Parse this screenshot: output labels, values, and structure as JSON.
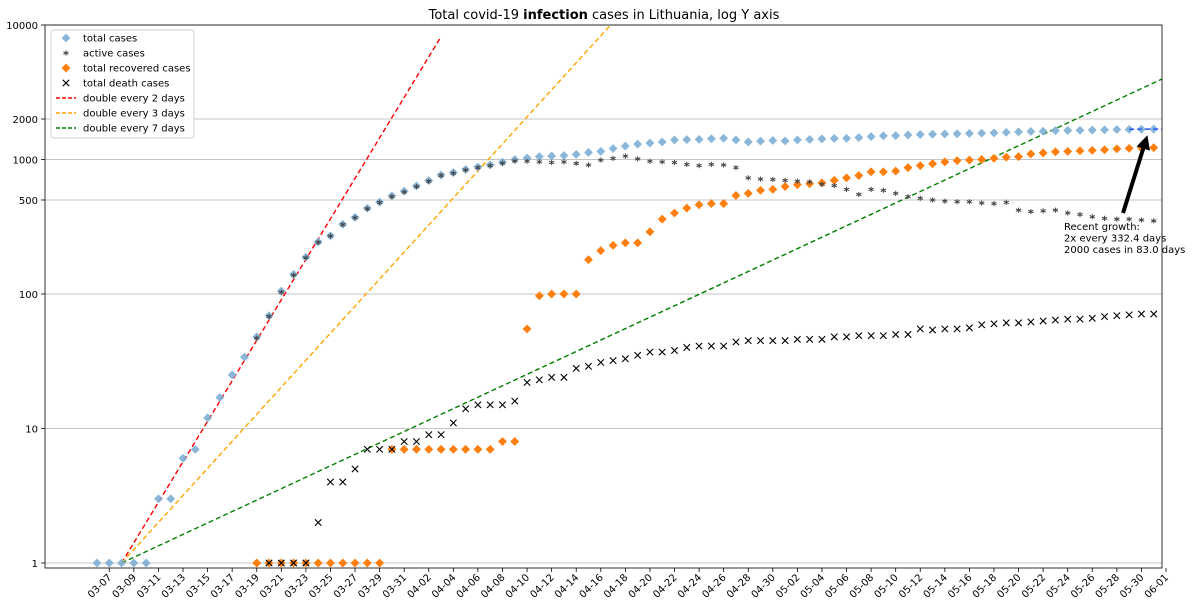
{
  "chart_data": {
    "type": "scatter",
    "title": {
      "prefix": "Total covid-19 ",
      "bold": "infection",
      "suffix": " cases in Lithuania, log Y axis"
    },
    "xlabel": "",
    "ylabel": "",
    "yscale": "log",
    "ylim": [
      1,
      10000
    ],
    "x_ticks": [
      "03-07",
      "03-09",
      "03-11",
      "03-13",
      "03-15",
      "03-17",
      "03-19",
      "03-21",
      "03-23",
      "03-25",
      "03-27",
      "03-29",
      "03-31",
      "04-02",
      "04-04",
      "04-06",
      "04-08",
      "04-10",
      "04-12",
      "04-14",
      "04-16",
      "04-18",
      "04-20",
      "04-22",
      "04-24",
      "04-26",
      "04-28",
      "04-30",
      "05-02",
      "05-04",
      "05-06",
      "05-08",
      "05-10",
      "05-12",
      "05-14",
      "05-16",
      "05-18",
      "05-20",
      "05-22",
      "05-24",
      "05-26",
      "05-28",
      "05-30",
      "06-01"
    ],
    "y_ticks": [
      1,
      10,
      100,
      500,
      1000,
      2000,
      10000
    ],
    "y_tick_labels": [
      "1",
      "10",
      "100",
      "500",
      "1000",
      "2000",
      "10000"
    ],
    "grid": {
      "y": true,
      "x": false
    },
    "legend_position": "top-left",
    "date_range": [
      "03-06",
      "06-01"
    ],
    "series": [
      {
        "name": "total cases",
        "marker": "diamond",
        "color": "#7eb0d5",
        "dates": [
          "03-06",
          "03-07",
          "03-08",
          "03-09",
          "03-10",
          "03-11",
          "03-12",
          "03-13",
          "03-14",
          "03-15",
          "03-16",
          "03-17",
          "03-18",
          "03-19",
          "03-20",
          "03-21",
          "03-22",
          "03-23",
          "03-24",
          "03-25",
          "03-26",
          "03-27",
          "03-28",
          "03-29",
          "03-30",
          "03-31",
          "04-01",
          "04-02",
          "04-03",
          "04-04",
          "04-05",
          "04-06",
          "04-07",
          "04-08",
          "04-09",
          "04-10",
          "04-11",
          "04-12",
          "04-13",
          "04-14",
          "04-15",
          "04-16",
          "04-17",
          "04-18",
          "04-19",
          "04-20",
          "04-21",
          "04-22",
          "04-23",
          "04-24",
          "04-25",
          "04-26",
          "04-27",
          "04-28",
          "04-29",
          "04-30",
          "05-01",
          "05-02",
          "05-03",
          "05-04",
          "05-05",
          "05-06",
          "05-07",
          "05-08",
          "05-09",
          "05-10",
          "05-11",
          "05-12",
          "05-13",
          "05-14",
          "05-15",
          "05-16",
          "05-17",
          "05-18",
          "05-19",
          "05-20",
          "05-21",
          "05-22",
          "05-23",
          "05-24",
          "05-25",
          "05-26",
          "05-27",
          "05-28",
          "05-29",
          "05-30",
          "05-31",
          "06-01"
        ],
        "values": [
          1,
          1,
          1,
          1,
          1,
          3,
          3,
          6,
          7,
          12,
          17,
          25,
          34,
          48,
          69,
          105,
          140,
          188,
          244,
          271,
          330,
          371,
          434,
          482,
          537,
          581,
          636,
          696,
          767,
          799,
          843,
          880,
          912,
          955,
          999,
          1026,
          1050,
          1062,
          1070,
          1091,
          1128,
          1149,
          1206,
          1258,
          1301,
          1326,
          1349,
          1399,
          1405,
          1410,
          1426,
          1438,
          1398,
          1350,
          1370,
          1385,
          1375,
          1398,
          1410,
          1422,
          1433,
          1436,
          1456,
          1480,
          1499,
          1504,
          1521,
          1534,
          1541,
          1547,
          1553,
          1562,
          1570,
          1577,
          1593,
          1605,
          1616,
          1623,
          1639,
          1642,
          1647,
          1656,
          1662,
          1670,
          1675,
          1678,
          1682,
          1687
        ]
      },
      {
        "name": "active cases",
        "marker": "star",
        "color": "#444444",
        "dates": [
          "03-19",
          "03-20",
          "03-21",
          "03-22",
          "03-23",
          "03-24",
          "03-25",
          "03-26",
          "03-27",
          "03-28",
          "03-29",
          "03-30",
          "03-31",
          "04-01",
          "04-02",
          "04-03",
          "04-04",
          "04-05",
          "04-06",
          "04-07",
          "04-08",
          "04-09",
          "04-10",
          "04-11",
          "04-12",
          "04-13",
          "04-14",
          "04-15",
          "04-16",
          "04-17",
          "04-18",
          "04-19",
          "04-20",
          "04-21",
          "04-22",
          "04-23",
          "04-24",
          "04-25",
          "04-26",
          "04-27",
          "04-28",
          "04-29",
          "04-30",
          "05-01",
          "05-02",
          "05-03",
          "05-04",
          "05-05",
          "05-06",
          "05-07",
          "05-08",
          "05-09",
          "05-10",
          "05-11",
          "05-12",
          "05-13",
          "05-14",
          "05-15",
          "05-16",
          "05-17",
          "05-18",
          "05-19",
          "05-20",
          "05-21",
          "05-22",
          "05-23",
          "05-24",
          "05-25",
          "05-26",
          "05-27",
          "05-28",
          "05-29",
          "05-30",
          "05-31",
          "06-01"
        ],
        "values": [
          47,
          68,
          103,
          138,
          186,
          242,
          270,
          328,
          369,
          430,
          479,
          530,
          573,
          629,
          689,
          760,
          790,
          835,
          870,
          900,
          940,
          975,
          970,
          960,
          950,
          960,
          935,
          910,
          990,
          1020,
          1060,
          1010,
          970,
          960,
          950,
          920,
          900,
          920,
          910,
          870,
          730,
          715,
          710,
          700,
          690,
          680,
          655,
          640,
          600,
          550,
          600,
          590,
          560,
          530,
          515,
          500,
          490,
          485,
          485,
          475,
          470,
          480,
          420,
          410,
          415,
          420,
          400,
          390,
          375,
          365,
          360,
          360,
          355,
          350,
          340
        ]
      },
      {
        "name": "total recovered cases",
        "marker": "diamond",
        "color": "#ff7f0e",
        "dates": [
          "03-19",
          "03-20",
          "03-21",
          "03-22",
          "03-23",
          "03-24",
          "03-25",
          "03-26",
          "03-27",
          "03-28",
          "03-29",
          "03-30",
          "03-31",
          "04-01",
          "04-02",
          "04-03",
          "04-04",
          "04-05",
          "04-06",
          "04-07",
          "04-08",
          "04-09",
          "04-10",
          "04-11",
          "04-12",
          "04-13",
          "04-14",
          "04-15",
          "04-16",
          "04-17",
          "04-18",
          "04-19",
          "04-20",
          "04-21",
          "04-22",
          "04-23",
          "04-24",
          "04-25",
          "04-26",
          "04-27",
          "04-28",
          "04-29",
          "04-30",
          "05-01",
          "05-02",
          "05-03",
          "05-04",
          "05-05",
          "05-06",
          "05-07",
          "05-08",
          "05-09",
          "05-10",
          "05-11",
          "05-12",
          "05-13",
          "05-14",
          "05-15",
          "05-16",
          "05-17",
          "05-18",
          "05-19",
          "05-20",
          "05-21",
          "05-22",
          "05-23",
          "05-24",
          "05-25",
          "05-26",
          "05-27",
          "05-28",
          "05-29",
          "05-30",
          "05-31",
          "06-01"
        ],
        "values": [
          1,
          1,
          1,
          1,
          1,
          1,
          1,
          1,
          1,
          1,
          1,
          7,
          7,
          7,
          7,
          7,
          7,
          7,
          7,
          7,
          8,
          8,
          55,
          97,
          100,
          100,
          100,
          180,
          210,
          230,
          240,
          240,
          290,
          360,
          400,
          435,
          460,
          470,
          470,
          540,
          560,
          590,
          600,
          630,
          650,
          660,
          670,
          700,
          730,
          760,
          810,
          810,
          820,
          870,
          900,
          930,
          960,
          980,
          990,
          1000,
          1020,
          1040,
          1050,
          1100,
          1120,
          1140,
          1150,
          1160,
          1170,
          1180,
          1200,
          1210,
          1220,
          1225,
          1230
        ]
      },
      {
        "name": "total death cases",
        "marker": "x",
        "color": "#000000",
        "dates": [
          "03-20",
          "03-21",
          "03-22",
          "03-23",
          "03-24",
          "03-25",
          "03-26",
          "03-27",
          "03-28",
          "03-29",
          "03-30",
          "03-31",
          "04-01",
          "04-02",
          "04-03",
          "04-04",
          "04-05",
          "04-06",
          "04-07",
          "04-08",
          "04-09",
          "04-10",
          "04-11",
          "04-12",
          "04-13",
          "04-14",
          "04-15",
          "04-16",
          "04-17",
          "04-18",
          "04-19",
          "04-20",
          "04-21",
          "04-22",
          "04-23",
          "04-24",
          "04-25",
          "04-26",
          "04-27",
          "04-28",
          "04-29",
          "04-30",
          "05-01",
          "05-02",
          "05-03",
          "05-04",
          "05-05",
          "05-06",
          "05-07",
          "05-08",
          "05-09",
          "05-10",
          "05-11",
          "05-12",
          "05-13",
          "05-14",
          "05-15",
          "05-16",
          "05-17",
          "05-18",
          "05-19",
          "05-20",
          "05-21",
          "05-22",
          "05-23",
          "05-24",
          "05-25",
          "05-26",
          "05-27",
          "05-28",
          "05-29",
          "05-30",
          "05-31",
          "06-01"
        ],
        "values": [
          1,
          1,
          1,
          1,
          2,
          4,
          4,
          5,
          7,
          7,
          7,
          8,
          8,
          9,
          9,
          11,
          14,
          15,
          15,
          15,
          16,
          22,
          23,
          24,
          24,
          28,
          29,
          31,
          32,
          33,
          35,
          37,
          37,
          38,
          40,
          41,
          41,
          41,
          44,
          45,
          45,
          45,
          45,
          46,
          46,
          46,
          48,
          48,
          49,
          49,
          49,
          50,
          50,
          55,
          54,
          55,
          55,
          56,
          59,
          60,
          61,
          61,
          62,
          63,
          64,
          65,
          65,
          66,
          68,
          69,
          70,
          71,
          71,
          71
        ]
      },
      {
        "name": "double every 2 days",
        "type": "line",
        "style": "dashed",
        "color": "#ff0000",
        "dates": [
          "03-08",
          "04-03"
        ],
        "values": [
          1,
          8192
        ]
      },
      {
        "name": "double every 3 days",
        "type": "line",
        "style": "dashed",
        "color": "#ffa500",
        "dates": [
          "03-08",
          "04-20"
        ],
        "values": [
          1,
          21000
        ]
      },
      {
        "name": "double every 7 days",
        "type": "line",
        "style": "dashed",
        "color": "#008000",
        "dates": [
          "03-08",
          "06-01"
        ],
        "values": [
          1,
          4096
        ]
      }
    ],
    "recent_fit": {
      "color": "#1f4fff",
      "dates": [
        "05-29",
        "06-01"
      ],
      "values": [
        1678,
        1687
      ]
    },
    "annotation": {
      "lines": [
        "Recent growth:",
        "2x every 332.4 days",
        "2000 cases in 83.0 days"
      ],
      "arrow_to_date": "05-30",
      "arrow_to_value": 1680
    }
  }
}
